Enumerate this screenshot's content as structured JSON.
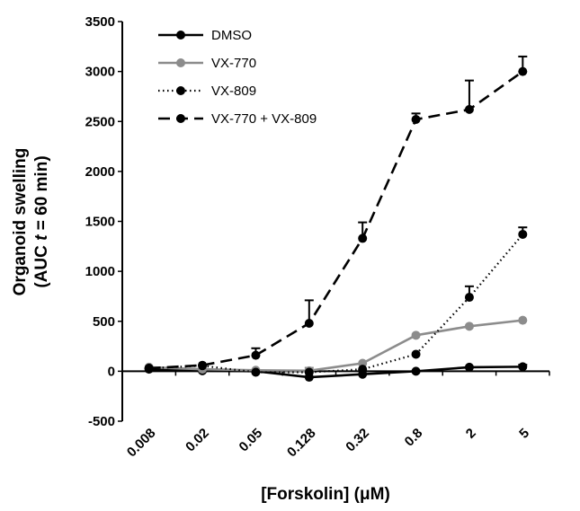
{
  "chart_data": {
    "type": "line",
    "title": "",
    "xlabel": "[Forskolin] (μM)",
    "ylabel_line1": "Organoid swelling",
    "ylabel_line2_prefix": "(AUC ",
    "ylabel_line2_var": "t",
    "ylabel_line2_suffix": " = 60 min)",
    "categories": [
      "0.008",
      "0.02",
      "0.05",
      "0.128",
      "0.32",
      "0.8",
      "2",
      "5"
    ],
    "ylim": [
      -500,
      3500
    ],
    "yticks": [
      -500,
      0,
      500,
      1000,
      1500,
      2000,
      2500,
      3000,
      3500
    ],
    "grid": false,
    "legend_position": "top-left",
    "series": [
      {
        "name": "DMSO",
        "color": "#000000",
        "dash": "solid",
        "values": [
          20,
          5,
          0,
          -60,
          -30,
          0,
          40,
          45
        ],
        "errors": [
          10,
          0,
          0,
          0,
          0,
          0,
          0,
          20
        ]
      },
      {
        "name": "VX-770",
        "color": "#8c8c8c",
        "dash": "solid",
        "values": [
          40,
          20,
          10,
          5,
          80,
          360,
          450,
          510
        ],
        "errors": [
          0,
          0,
          0,
          30,
          0,
          0,
          0,
          0
        ]
      },
      {
        "name": "VX-809",
        "color": "#000000",
        "dash": "dotted",
        "values": [
          30,
          55,
          -10,
          -10,
          20,
          170,
          740,
          1370
        ],
        "errors": [
          0,
          0,
          0,
          0,
          0,
          0,
          110,
          70
        ]
      },
      {
        "name": "VX-770 + VX-809",
        "color": "#000000",
        "dash": "dashed",
        "values": [
          30,
          60,
          160,
          480,
          1330,
          2520,
          2620,
          3000
        ],
        "errors": [
          0,
          0,
          70,
          230,
          160,
          60,
          290,
          150
        ]
      }
    ]
  }
}
